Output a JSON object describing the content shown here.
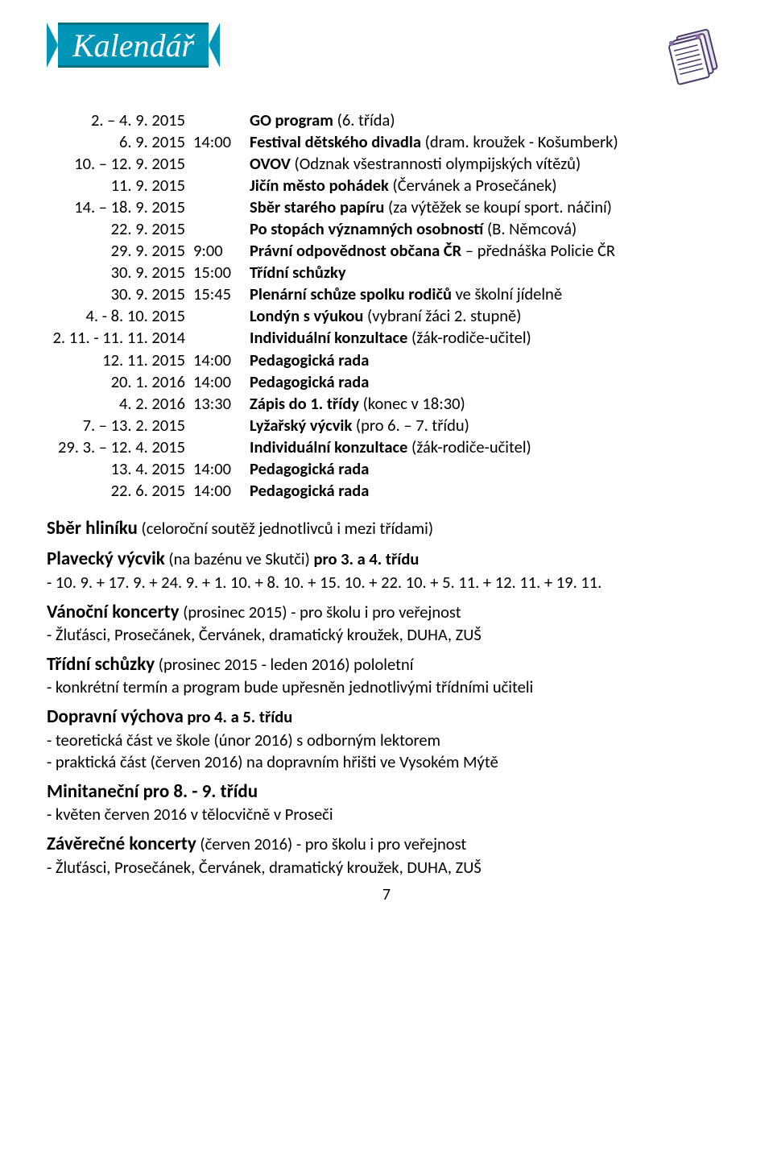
{
  "banner_title": "Kalendář",
  "schedule": [
    {
      "date": "2. – 4. 9. 2015",
      "time": "",
      "desc_pre": "",
      "desc_bold": "GO program",
      "desc_post": " (6. třída)"
    },
    {
      "date": "6. 9. 2015",
      "time": "14:00",
      "desc_pre": "",
      "desc_bold": "Festival dětského divadla",
      "desc_post": " (dram. kroužek - Košumberk)"
    },
    {
      "date": "10. – 12. 9. 2015",
      "time": "",
      "desc_pre": "",
      "desc_bold": "OVOV",
      "desc_post": " (Odznak všestrannosti olympijských vítězů)"
    },
    {
      "date": "11. 9. 2015",
      "time": "",
      "desc_pre": "",
      "desc_bold": "Jičín město pohádek",
      "desc_post": " (Červánek a Prosečánek)"
    },
    {
      "date": "14. – 18. 9. 2015",
      "time": "",
      "desc_pre": "",
      "desc_bold": "Sběr starého papíru",
      "desc_post": " (za výtěžek se koupí sport. náčiní)"
    },
    {
      "date": "22. 9. 2015",
      "time": "",
      "desc_pre": "",
      "desc_bold": "Po stopách významných osobností",
      "desc_post": " (B. Němcová)"
    },
    {
      "date": "29. 9. 2015",
      "time": "9:00",
      "desc_pre": "",
      "desc_bold": "Právní odpovědnost občana ČR",
      "desc_post": " – přednáška Policie ČR"
    },
    {
      "date": "30. 9. 2015",
      "time": "15:00",
      "desc_pre": "",
      "desc_bold": "Třídní schůzky",
      "desc_post": ""
    },
    {
      "date": "30. 9. 2015",
      "time": "15:45",
      "desc_pre": "",
      "desc_bold": "Plenární schůze spolku rodičů",
      "desc_post": " ve školní jídelně"
    },
    {
      "date": "4. - 8. 10. 2015",
      "time": "",
      "desc_pre": "",
      "desc_bold": "Londýn s výukou",
      "desc_post": " (vybraní žáci 2. stupně)"
    },
    {
      "date": "2. 11. - 11. 11. 2014",
      "time": "",
      "desc_pre": "",
      "desc_bold": "Individuální konzultace",
      "desc_post": " (žák-rodiče-učitel)"
    },
    {
      "date": "12. 11. 2015",
      "time": "14:00",
      "desc_pre": "",
      "desc_bold": "Pedagogická rada",
      "desc_post": ""
    },
    {
      "date": "20. 1. 2016",
      "time": "14:00",
      "desc_pre": "",
      "desc_bold": "Pedagogická rada",
      "desc_post": ""
    },
    {
      "date": "4. 2. 2016",
      "time": "13:30",
      "desc_pre": "",
      "desc_bold": "Zápis do 1. třídy",
      "desc_post": " (konec v 18:30)"
    },
    {
      "date": "7. – 13. 2. 2015",
      "time": "",
      "desc_pre": "",
      "desc_bold": "Lyžařský výcvik",
      "desc_post": " (pro 6. – 7. třídu)"
    },
    {
      "date": "29. 3. – 12. 4. 2015",
      "time": "",
      "desc_pre": "",
      "desc_bold": "Individuální konzultace",
      "desc_post": " (žák-rodiče-učitel)"
    },
    {
      "date": "13. 4. 2015",
      "time": "14:00",
      "desc_pre": "",
      "desc_bold": "Pedagogická rada",
      "desc_post": ""
    },
    {
      "date": "22. 6. 2015",
      "time": "14:00",
      "desc_pre": "",
      "desc_bold": "Pedagogická rada",
      "desc_post": ""
    }
  ],
  "notes": {
    "n1_title": "Sběr hliníku",
    "n1_post": " (celoroční soutěž jednotlivců i mezi třídami)",
    "n2_title": "Plavecký výcvik",
    "n2_mid": " (na bazénu ve Skutči) ",
    "n2_bold2": "pro 3. a 4. třídu",
    "n2_line": "- 10. 9. + 17. 9. + 24. 9. + 1. 10. + 8. 10. + 15. 10. + 22. 10. + 5. 11. + 12. 11. + 19. 11.",
    "n3_title": "Vánoční koncerty",
    "n3_post": " (prosinec 2015) - pro školu i pro veřejnost",
    "n3_line": "- Žluťásci, Prosečánek, Červánek, dramatický kroužek, DUHA, ZUŠ",
    "n4_title": "Třídní schůzky",
    "n4_post": " (prosinec 2015 - leden 2016) pololetní",
    "n4_line": "- konkrétní termín a program bude upřesněn jednotlivými třídními učiteli",
    "n5_title": "Dopravní výchova",
    "n5_bold2": " pro 4. a 5. třídu",
    "n5_line1": "- teoretická část ve škole (únor 2016) s odborným lektorem",
    "n5_line2": "- praktická část (červen 2016) na dopravním hřišti ve Vysokém Mýtě",
    "n6_title": "Minitaneční pro 8. - 9. třídu",
    "n6_line": "- květen červen 2016 v tělocvičně v Proseči",
    "n7_title": "Závěrečné koncerty",
    "n7_post": " (červen 2016) - pro školu i pro veřejnost",
    "n7_line": "- Žluťásci, Prosečánek, Červánek, dramatický kroužek, DUHA, ZUŠ"
  },
  "page_number": "7"
}
